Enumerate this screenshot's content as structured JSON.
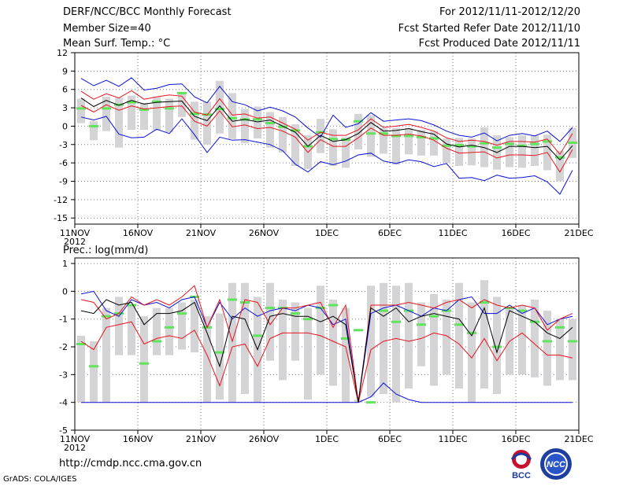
{
  "header": {
    "title": "DERF/NCC/BCC Monthly Forecast",
    "member": "Member Size=40",
    "variable": "Mean Surf. Temp.: °C",
    "period": "For 2012/11/11-2012/12/20",
    "started": "Fcst Started Refer Date 2012/11/10",
    "produced": "Fcst Produced Date 2012/11/11"
  },
  "footer": {
    "url": "http://cmdp.ncc.cma.gov.cn",
    "credit": "GrADS: COLA/IGES"
  },
  "logos": {
    "bcc": "BCC",
    "ncc": "NCC"
  },
  "colors": {
    "bar": "#d4d4d6",
    "median": "#5ee55a",
    "mean": "#000000",
    "inner": "#e8141e",
    "outer": "#0a10d4",
    "grid": "#808080"
  },
  "chart_data": [
    {
      "type": "line",
      "title": "",
      "ylabel": "Mean Surf. Temp.: °C",
      "ylim": [
        -16,
        12
      ],
      "yticks": [
        12,
        9,
        6,
        3,
        0,
        -3,
        -6,
        -9,
        -12,
        -15
      ],
      "xlim": [
        0,
        40
      ],
      "xticks": [
        {
          "day": 0,
          "label": "11NOV",
          "sub": "2012"
        },
        {
          "day": 5,
          "label": "16NOV",
          "sub": ""
        },
        {
          "day": 10,
          "label": "21NOV",
          "sub": ""
        },
        {
          "day": 15,
          "label": "26NOV",
          "sub": ""
        },
        {
          "day": 20,
          "label": "1DEC",
          "sub": ""
        },
        {
          "day": 25,
          "label": "6DEC",
          "sub": ""
        },
        {
          "day": 30,
          "label": "11DEC",
          "sub": ""
        },
        {
          "day": 35,
          "label": "16DEC",
          "sub": ""
        },
        {
          "day": 40,
          "label": "21DEC",
          "sub": ""
        }
      ],
      "series": [
        {
          "name": "max",
          "values": [
            7.8,
            6.6,
            7.5,
            6.5,
            7.9,
            5.9,
            6.2,
            6.8,
            6.9,
            4.8,
            3.8,
            6.5,
            4.0,
            3.5,
            2.5,
            3.1,
            2.5,
            1.5,
            -0.3,
            -1.8,
            1.8,
            -0.2,
            0.4,
            2.2,
            0.8,
            1.0,
            1.2,
            0.9,
            0.2,
            -0.8,
            -1.5,
            -1.8,
            -1.1,
            -2.4,
            -1.5,
            -1.2,
            -1.6,
            -0.8,
            -2.5,
            -0.2
          ]
        },
        {
          "name": "upper",
          "values": [
            5.7,
            4.4,
            5.3,
            4.6,
            5.8,
            4.4,
            4.8,
            5.1,
            4.9,
            2.3,
            1.8,
            4.5,
            1.8,
            2.0,
            1.3,
            1.5,
            0.5,
            -0.5,
            -2.3,
            -1.0,
            -1.5,
            -1.5,
            -0.6,
            1.2,
            -0.2,
            0.0,
            0.3,
            -0.2,
            -0.8,
            -1.9,
            -2.5,
            -2.3,
            -2.5,
            -3.1,
            -2.5,
            -2.5,
            -2.6,
            -2.1,
            -4.6,
            -1.2
          ]
        },
        {
          "name": "mean",
          "values": [
            4.6,
            3.2,
            4.2,
            3.4,
            4.2,
            3.6,
            3.9,
            4.0,
            4.1,
            1.6,
            0.9,
            3.3,
            0.8,
            1.1,
            0.7,
            1.0,
            0.0,
            -1.0,
            -3.3,
            -1.5,
            -2.5,
            -2.2,
            -1.2,
            0.6,
            -0.8,
            -0.7,
            -0.4,
            -0.9,
            -1.3,
            -2.9,
            -3.4,
            -3.1,
            -3.5,
            -4.3,
            -3.3,
            -3.3,
            -3.5,
            -3.3,
            -5.5,
            -3.2
          ]
        },
        {
          "name": "lower",
          "values": [
            3.4,
            2.3,
            3.5,
            2.6,
            3.3,
            2.8,
            3.0,
            3.2,
            3.3,
            0.8,
            0.0,
            2.5,
            -0.1,
            0.2,
            -0.4,
            -0.2,
            -0.8,
            -1.8,
            -4.3,
            -2.2,
            -3.3,
            -3.3,
            -1.9,
            -0.3,
            -1.5,
            -1.5,
            -1.3,
            -1.6,
            -2.3,
            -3.6,
            -4.4,
            -4.3,
            -4.2,
            -5.2,
            -4.7,
            -4.7,
            -4.8,
            -4.3,
            -7.5,
            -3.8
          ]
        },
        {
          "name": "min",
          "values": [
            1.5,
            1.0,
            1.6,
            -1.3,
            -1.9,
            -1.8,
            -0.5,
            -1.2,
            1.2,
            -1.4,
            -4.3,
            -1.8,
            -2.3,
            -2.2,
            -2.6,
            -3.0,
            -4.0,
            -6.2,
            -7.5,
            -5.8,
            -6.3,
            -5.7,
            -4.7,
            -4.4,
            -5.7,
            -6.1,
            -5.5,
            -5.8,
            -6.6,
            -6.1,
            -8.5,
            -8.4,
            -8.9,
            -8.0,
            -8.5,
            -8.4,
            -8.1,
            -9.1,
            -11.1,
            -7.2
          ]
        },
        {
          "name": "median",
          "values": [
            2.9,
            0.0,
            2.9,
            3.5,
            3.9,
            2.7,
            4.0,
            2.9,
            5.4,
            2.0,
            1.9,
            2.8,
            1.3,
            1.1,
            1.1,
            0.5,
            -0.1,
            -0.7,
            -3.3,
            -1.0,
            -2.1,
            -2.2,
            0.8,
            -1.2,
            -1.2,
            -1.6,
            -1.6,
            -1.8,
            -2.0,
            -3.2,
            -3.1,
            -3.3,
            -2.8,
            -3.5,
            -2.9,
            -3.2,
            -2.9,
            -2.5,
            -5.1,
            -2.7
          ]
        },
        {
          "name": "box_top",
          "values": [
            4.5,
            0.8,
            4.8,
            4.6,
            5.0,
            3.8,
            4.8,
            4.5,
            5.5,
            4.0,
            4.0,
            7.4,
            5.4,
            2.8,
            3.2,
            2.3,
            1.5,
            0.3,
            -1.5,
            1.2,
            -0.5,
            -1.8,
            2.0,
            1.8,
            -0.3,
            -0.3,
            -0.3,
            -0.6,
            -0.8,
            -2.0,
            -1.9,
            -2.0,
            -0.2,
            -1.5,
            -1.8,
            -1.5,
            -1.5,
            -1.4,
            -4.0,
            -0.3
          ]
        },
        {
          "name": "box_bottom",
          "values": [
            0.5,
            -2.3,
            -0.8,
            -3.5,
            -0.6,
            -0.6,
            -0.7,
            -1.0,
            1.5,
            -2.2,
            -3.0,
            -1.2,
            -2.1,
            -2.8,
            -2.0,
            -3.5,
            -4.3,
            -6.5,
            -7.0,
            -4.4,
            -6.5,
            -6.8,
            -3.8,
            -5.0,
            -4.5,
            -6.3,
            -4.6,
            -4.8,
            -4.8,
            -6.0,
            -6.5,
            -6.4,
            -6.7,
            -7.1,
            -6.7,
            -6.8,
            -6.5,
            -7.2,
            -9.0,
            -5.2
          ]
        }
      ]
    },
    {
      "type": "line",
      "title": "",
      "ylabel": "Prec.: log(mm/d)",
      "ylim": [
        -5,
        1.2
      ],
      "yticks": [
        1,
        0,
        -1,
        -2,
        -3,
        -4,
        -5
      ],
      "xlim": [
        0,
        40
      ],
      "xticks": [
        {
          "day": 0,
          "label": "11NOV",
          "sub": "2012"
        },
        {
          "day": 5,
          "label": "16NOV",
          "sub": ""
        },
        {
          "day": 10,
          "label": "21NOV",
          "sub": ""
        },
        {
          "day": 15,
          "label": "26NOV",
          "sub": ""
        },
        {
          "day": 20,
          "label": "1DEC",
          "sub": ""
        },
        {
          "day": 25,
          "label": "6DEC",
          "sub": ""
        },
        {
          "day": 30,
          "label": "11DEC",
          "sub": ""
        },
        {
          "day": 35,
          "label": "16DEC",
          "sub": ""
        },
        {
          "day": 40,
          "label": "21DEC",
          "sub": ""
        }
      ],
      "series": [
        {
          "name": "max",
          "values": [
            -0.1,
            0.0,
            -0.7,
            -0.9,
            -0.3,
            -0.5,
            -0.4,
            -0.6,
            -0.3,
            -0.2,
            -1.3,
            -0.4,
            -1.0,
            -0.6,
            -0.9,
            -0.7,
            -0.6,
            -0.7,
            -0.5,
            -0.6,
            -1.2,
            -1.0,
            -4.0,
            -0.8,
            -0.6,
            -0.5,
            -0.7,
            -0.9,
            -0.6,
            -0.7,
            -0.3,
            -0.2,
            -0.8,
            -0.8,
            -0.5,
            -0.8,
            -0.6,
            -1.2,
            -1.0,
            -0.9
          ]
        },
        {
          "name": "upper",
          "values": [
            -0.3,
            -0.4,
            -1.0,
            -0.8,
            -0.2,
            -0.5,
            -0.3,
            -0.5,
            -0.2,
            0.2,
            -1.3,
            -0.3,
            -1.8,
            -0.3,
            -0.4,
            -1.2,
            -0.6,
            -0.6,
            -0.5,
            -0.4,
            -1.3,
            -0.5,
            -4.0,
            -0.5,
            -0.5,
            -0.5,
            -0.4,
            -0.5,
            -0.6,
            -0.4,
            -0.3,
            -0.6,
            -0.3,
            -0.5,
            -0.6,
            -0.5,
            -0.6,
            -1.4,
            -1.0,
            -0.8
          ]
        },
        {
          "name": "mean",
          "values": [
            -0.7,
            -0.8,
            -0.3,
            -0.5,
            -0.4,
            -1.2,
            -0.8,
            -0.8,
            -0.7,
            -0.4,
            -1.5,
            -2.7,
            -0.9,
            -1.0,
            -2.1,
            -0.9,
            -0.8,
            -0.9,
            -0.9,
            -1.1,
            -0.9,
            -1.2,
            -4.0,
            -0.6,
            -0.9,
            -0.6,
            -1.1,
            -0.9,
            -0.8,
            -0.9,
            -1.0,
            -1.6,
            -0.6,
            -2.2,
            -0.7,
            -0.9,
            -1.1,
            -1.5,
            -1.7,
            -1.3
          ]
        },
        {
          "name": "lower",
          "values": [
            -1.8,
            -2.1,
            -1.3,
            -1.2,
            -1.1,
            -1.9,
            -1.7,
            -1.6,
            -1.7,
            -1.4,
            -2.3,
            -3.4,
            -2.0,
            -1.9,
            -2.7,
            -1.7,
            -1.5,
            -1.5,
            -1.5,
            -1.6,
            -1.8,
            -2.0,
            -4.0,
            -2.1,
            -1.8,
            -1.7,
            -1.8,
            -1.7,
            -1.5,
            -1.6,
            -1.9,
            -2.4,
            -1.7,
            -2.5,
            -1.8,
            -1.5,
            -1.9,
            -2.3,
            -2.3,
            -2.4
          ]
        },
        {
          "name": "min",
          "values": [
            -4.0,
            -4.0,
            -4.0,
            -4.0,
            -4.0,
            -4.0,
            -4.0,
            -4.0,
            -4.0,
            -4.0,
            -4.0,
            -4.0,
            -4.0,
            -4.0,
            -4.0,
            -4.0,
            -4.0,
            -4.0,
            -4.0,
            -4.0,
            -4.0,
            -4.0,
            -4.0,
            -3.8,
            -3.3,
            -3.7,
            -3.9,
            -4.0,
            -4.0,
            -4.0,
            -4.0,
            -4.0,
            -4.0,
            -4.0,
            -4.0,
            -4.0,
            -4.0,
            -4.0,
            -4.0,
            -4.0
          ]
        },
        {
          "name": "median",
          "values": [
            -1.9,
            -2.7,
            -0.9,
            -0.8,
            -0.5,
            -2.6,
            -1.8,
            -1.3,
            -0.8,
            -0.2,
            -1.3,
            -2.2,
            -0.3,
            -0.4,
            -1.6,
            -0.6,
            -0.6,
            -0.8,
            -1.0,
            -0.6,
            -0.5,
            -1.7,
            -1.4,
            -4.0,
            -0.7,
            -1.1,
            -0.7,
            -1.2,
            -0.9,
            -0.7,
            -1.2,
            -1.5,
            -0.4,
            -2.0,
            -0.6,
            -0.7,
            -1.1,
            -1.8,
            -1.3,
            -1.8
          ]
        },
        {
          "name": "box_top",
          "values": [
            -1.6,
            -1.8,
            -0.6,
            -0.2,
            -0.5,
            -0.9,
            -0.6,
            -0.6,
            -0.4,
            -0.3,
            -0.9,
            -0.8,
            0.3,
            0.3,
            -0.2,
            0.3,
            -0.3,
            -0.4,
            -0.6,
            0.2,
            -0.3,
            -0.6,
            -3.9,
            0.2,
            0.3,
            0.2,
            0.3,
            -0.4,
            -0.1,
            -0.3,
            0.3,
            -0.4,
            0.4,
            -0.2,
            -0.6,
            -0.5,
            -0.3,
            -0.7,
            -1.0,
            -1.0
          ]
        },
        {
          "name": "box_bottom",
          "values": [
            -4.0,
            -4.0,
            -4.0,
            -2.3,
            -2.3,
            -4.0,
            -2.3,
            -2.3,
            -2.1,
            -2.2,
            -4.0,
            -3.9,
            -4.0,
            -3.7,
            -4.0,
            -2.5,
            -3.2,
            -2.5,
            -3.9,
            -3.0,
            -3.4,
            -4.0,
            -4.0,
            -3.8,
            -3.7,
            -4.0,
            -3.5,
            -2.7,
            -3.4,
            -3.0,
            -3.5,
            -4.0,
            -3.5,
            -3.7,
            -3.0,
            -3.0,
            -3.1,
            -3.4,
            -3.2,
            -3.2
          ]
        }
      ]
    }
  ]
}
